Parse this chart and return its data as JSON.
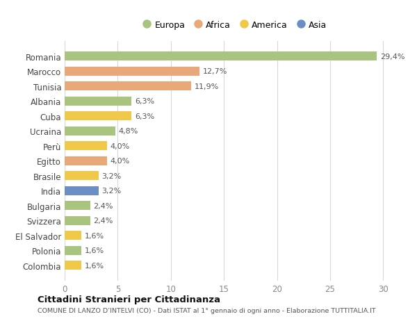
{
  "countries": [
    "Romania",
    "Marocco",
    "Tunisia",
    "Albania",
    "Cuba",
    "Ucraina",
    "Perù",
    "Egitto",
    "Brasile",
    "India",
    "Bulgaria",
    "Svizzera",
    "El Salvador",
    "Polonia",
    "Colombia"
  ],
  "values": [
    29.4,
    12.7,
    11.9,
    6.3,
    6.3,
    4.8,
    4.0,
    4.0,
    3.2,
    3.2,
    2.4,
    2.4,
    1.6,
    1.6,
    1.6
  ],
  "labels": [
    "29,4%",
    "12,7%",
    "11,9%",
    "6,3%",
    "6,3%",
    "4,8%",
    "4,0%",
    "4,0%",
    "3,2%",
    "3,2%",
    "2,4%",
    "2,4%",
    "1,6%",
    "1,6%",
    "1,6%"
  ],
  "colors": [
    "#a8c47e",
    "#e9a87a",
    "#e9a87a",
    "#a8c47e",
    "#f0c84a",
    "#a8c47e",
    "#f0c84a",
    "#e9a87a",
    "#f0c84a",
    "#6b8ec4",
    "#a8c47e",
    "#a8c47e",
    "#f0c84a",
    "#a8c47e",
    "#f0c84a"
  ],
  "legend_labels": [
    "Europa",
    "Africa",
    "America",
    "Asia"
  ],
  "legend_colors": [
    "#a8c47e",
    "#e9a87a",
    "#f0c84a",
    "#6b8ec4"
  ],
  "xlim": [
    0,
    32
  ],
  "xticks": [
    0,
    5,
    10,
    15,
    20,
    25,
    30
  ],
  "title": "Cittadini Stranieri per Cittadinanza",
  "subtitle": "COMUNE DI LANZO D’INTELVI (CO) - Dati ISTAT al 1° gennaio di ogni anno - Elaborazione TUTTITALIA.IT",
  "bg_color": "#ffffff",
  "grid_color": "#d8d8d8",
  "bar_height": 0.6
}
